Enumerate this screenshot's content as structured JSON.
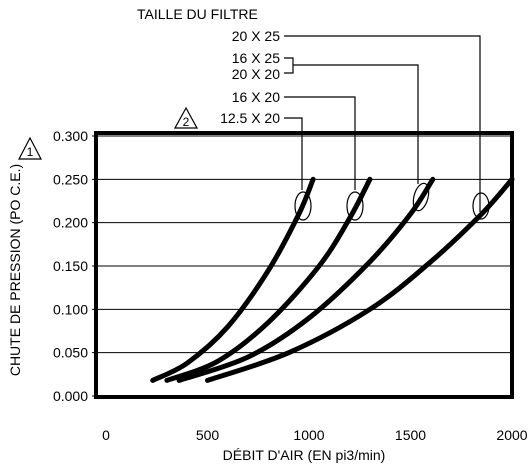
{
  "chart_data": {
    "type": "line",
    "title": "",
    "xlabel": "DÉBIT D'AIR (EN pi3/min)",
    "ylabel": "CHUTE DE PRESSION (PO C.E.)",
    "xlim": [
      0,
      2000
    ],
    "ylim": [
      0,
      0.3
    ],
    "x_ticks": [
      0,
      500,
      1000,
      1500,
      2000
    ],
    "y_ticks": [
      0.0,
      0.05,
      0.1,
      0.15,
      0.2,
      0.25,
      0.3
    ],
    "x_tick_labels": [
      "0",
      "500",
      "1000",
      "1500",
      "2000"
    ],
    "y_tick_labels": [
      "0.000",
      "0.050",
      "0.100",
      "0.150",
      "0.200",
      "0.250",
      "0.300"
    ],
    "grid": "horizontal",
    "legend_title": "TAILLE DU FILTRE",
    "series": [
      {
        "name": "12.5 X 20",
        "x": [
          230,
          400,
          600,
          800,
          950,
          1020
        ],
        "y": [
          0.018,
          0.038,
          0.08,
          0.145,
          0.21,
          0.25
        ]
      },
      {
        "name": "16 X 20",
        "x": [
          300,
          550,
          800,
          1050,
          1200,
          1300
        ],
        "y": [
          0.018,
          0.04,
          0.085,
          0.15,
          0.205,
          0.25
        ]
      },
      {
        "name": "16 X 25 / 20 X 20",
        "x": [
          360,
          700,
          1000,
          1300,
          1500,
          1610
        ],
        "y": [
          0.018,
          0.045,
          0.09,
          0.155,
          0.21,
          0.25
        ]
      },
      {
        "name": "20 X 25",
        "x": [
          500,
          900,
          1300,
          1600,
          1850,
          2000
        ],
        "y": [
          0.018,
          0.05,
          0.1,
          0.155,
          0.21,
          0.25
        ]
      }
    ],
    "legend_labels": [
      "20 X 25",
      "16 X 25",
      "20 X 20",
      "16 X 20",
      "12.5 X 20"
    ],
    "markers": [
      {
        "label": "1",
        "attached_to": "y-axis"
      },
      {
        "label": "2",
        "attached_to": "12.5 X 20"
      }
    ]
  }
}
